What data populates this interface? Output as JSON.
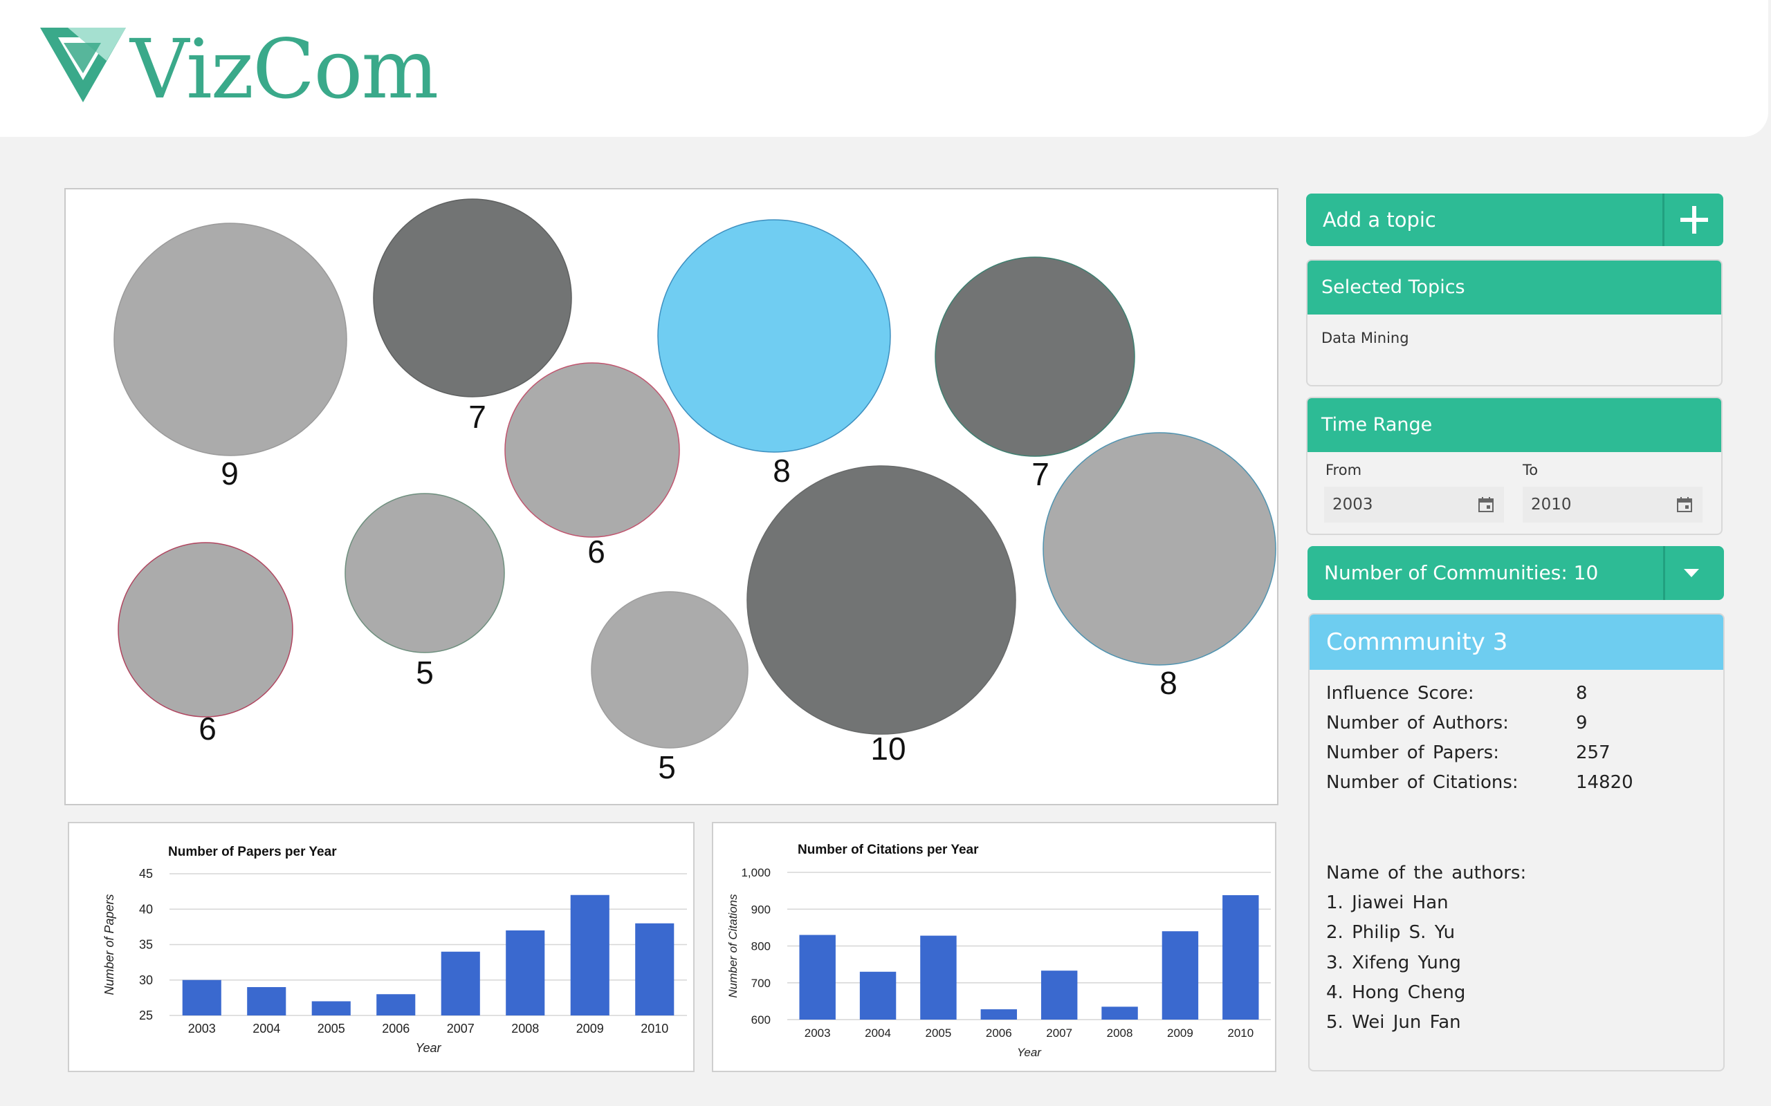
{
  "app": {
    "logo_text": "VizCom",
    "colors": {
      "brand": "#2dbb95",
      "brand_dark": "#21a07f",
      "highlight": "#6ecdf0"
    }
  },
  "bubbles": [
    {
      "label": "9",
      "state": "default",
      "fill": "#ababab"
    },
    {
      "label": "7",
      "state": "dark",
      "fill": "#727474"
    },
    {
      "label": "6",
      "state": "default",
      "fill": "#ababab"
    },
    {
      "label": "8",
      "state": "selected",
      "fill": "#70cdf2"
    },
    {
      "label": "7",
      "state": "dark",
      "fill": "#727474"
    },
    {
      "label": "8",
      "state": "default",
      "fill": "#ababab"
    },
    {
      "label": "6",
      "state": "default",
      "fill": "#ababab"
    },
    {
      "label": "5",
      "state": "default",
      "fill": "#ababab"
    },
    {
      "label": "5",
      "state": "default",
      "fill": "#ababab"
    },
    {
      "label": "10",
      "state": "dark",
      "fill": "#727474"
    }
  ],
  "chart_data": [
    {
      "type": "bar",
      "title": "Number of Papers per Year",
      "xlabel": "Year",
      "ylabel": "Number of Papers",
      "categories": [
        "2003",
        "2004",
        "2005",
        "2006",
        "2007",
        "2008",
        "2009",
        "2010"
      ],
      "values": [
        30,
        29,
        27,
        28,
        34,
        37,
        42,
        38
      ],
      "ylim": [
        25,
        45
      ],
      "yticks": [
        "25",
        "30",
        "35",
        "40",
        "45"
      ],
      "grid": true,
      "color": "#3a69cf"
    },
    {
      "type": "bar",
      "title": "Number of Citations per Year",
      "xlabel": "Year",
      "ylabel": "Number of Citations",
      "categories": [
        "2003",
        "2004",
        "2005",
        "2006",
        "2007",
        "2008",
        "2009",
        "2010"
      ],
      "values": [
        830,
        730,
        828,
        628,
        733,
        635,
        840,
        938
      ],
      "ylim": [
        600,
        1000
      ],
      "yticks": [
        "600",
        "700",
        "800",
        "900",
        "1,000"
      ],
      "grid": true,
      "color": "#3a69cf"
    }
  ],
  "sidebar": {
    "add_topic": {
      "label": "Add a topic",
      "icon": "plus-icon"
    },
    "selected_topics": {
      "title": "Selected Topics",
      "items": [
        "Data Mining"
      ]
    },
    "time_range": {
      "title": "Time Range",
      "from_label": "From",
      "from_value": "2003",
      "to_label": "To",
      "to_value": "2010",
      "icon": "calendar-icon"
    },
    "communities": {
      "label": "Number of Communities: 10",
      "icon": "caret-down-icon"
    },
    "community": {
      "title": "Commmunity 3",
      "stats": [
        {
          "label": "Influence Score:",
          "value": "8"
        },
        {
          "label": "Number of Authors:",
          "value": "9"
        },
        {
          "label": "Number of Papers:",
          "value": "257"
        },
        {
          "label": "Number of Citations:",
          "value": "14820"
        }
      ],
      "authors_title": "Name of the authors:",
      "authors": [
        "1. Jiawei Han",
        "2. Philip S. Yu",
        "3. Xifeng Yung",
        "4. Hong Cheng",
        "5. Wei Jun Fan"
      ]
    }
  }
}
